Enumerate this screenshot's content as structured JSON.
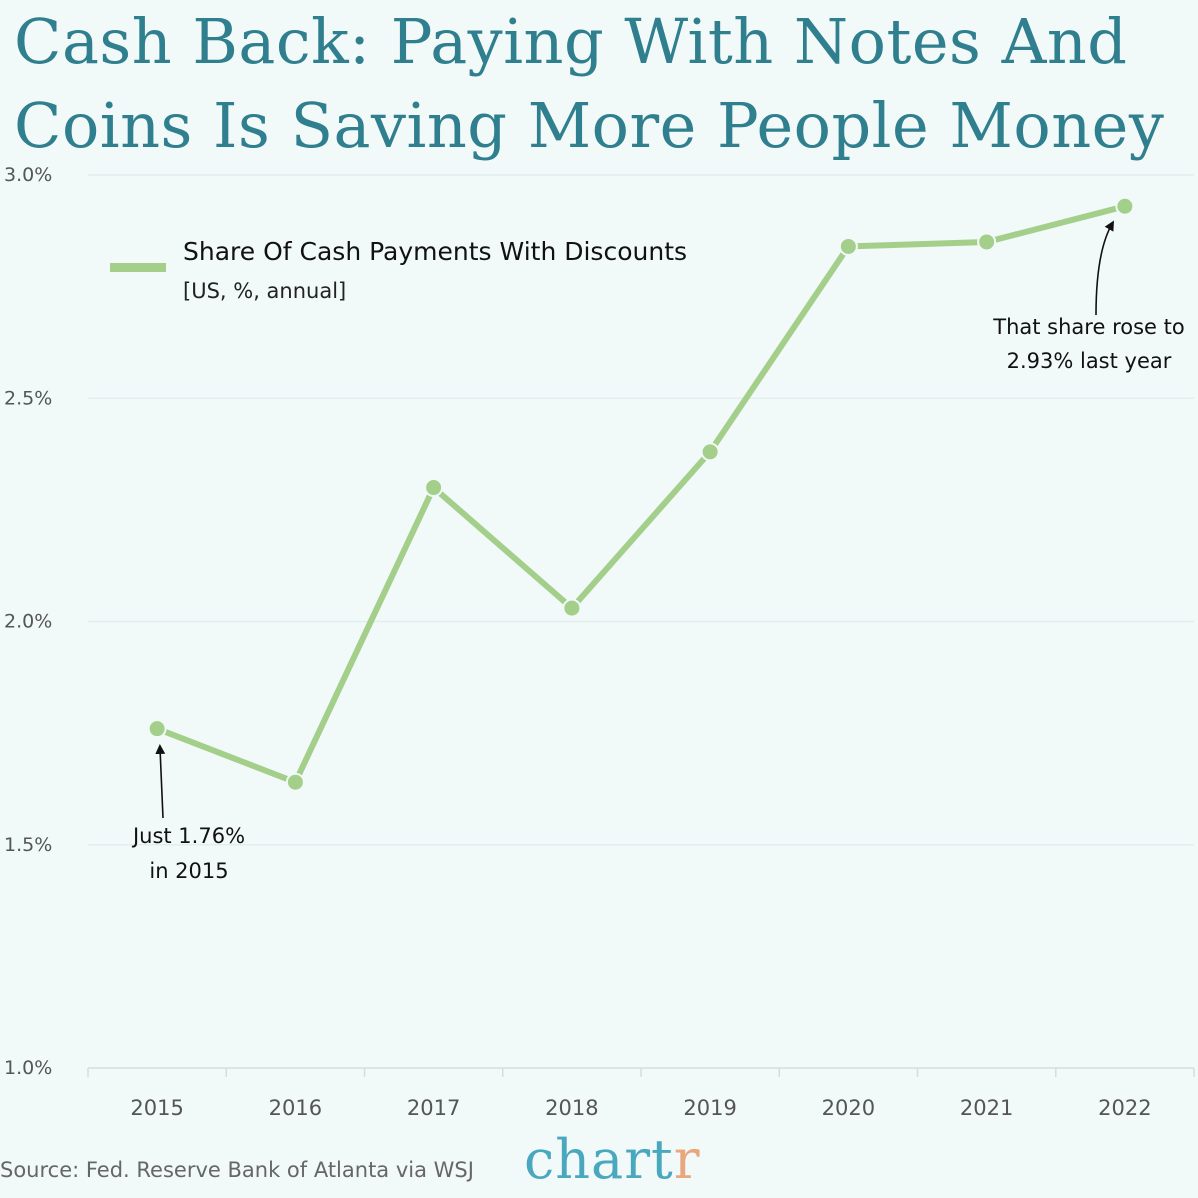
{
  "title": {
    "line1": "Cash Back: Paying With Notes And",
    "line2": "Coins Is Saving More People Money"
  },
  "legend": {
    "label": "Share Of Cash Payments With Discounts",
    "sublabel": "[US, %, annual]",
    "color": "#a3cf8a"
  },
  "annotations": [
    {
      "line1": "Just 1.76%",
      "line2": "in 2015",
      "target_year": "2015"
    },
    {
      "line1": "That share rose to",
      "line2": "2.93% last year",
      "target_year": "2022"
    }
  ],
  "source": "Source: Fed. Reserve Bank of Atlanta via WSJ",
  "brand": {
    "main": "chart",
    "accent": "r"
  },
  "colors": {
    "title": "#2f7f8f",
    "line": "#a3cf8a",
    "background": "#f1f9f9",
    "grid": "#e2eeee",
    "brand": "#4aa8be",
    "brand_accent": "#e9a77e"
  },
  "chart_data": {
    "type": "line",
    "title": "Cash Back: Paying With Notes And Coins Is Saving More People Money",
    "xlabel": "",
    "ylabel": "",
    "categories": [
      "2015",
      "2016",
      "2017",
      "2018",
      "2019",
      "2020",
      "2021",
      "2022"
    ],
    "series": [
      {
        "name": "Share Of Cash Payments With Discounts [US, %, annual]",
        "values": [
          1.76,
          1.64,
          2.3,
          2.03,
          2.38,
          2.84,
          2.85,
          2.93
        ]
      }
    ],
    "ylim": [
      1.0,
      3.0
    ],
    "yticks": [
      "1.0%",
      "1.5%",
      "2.0%",
      "2.5%",
      "3.0%"
    ],
    "ytick_values": [
      1.0,
      1.5,
      2.0,
      2.5,
      3.0
    ],
    "grid": true,
    "legend_position": "top-left",
    "annotations": [
      "Just 1.76% in 2015",
      "That share rose to 2.93% last year"
    ]
  }
}
